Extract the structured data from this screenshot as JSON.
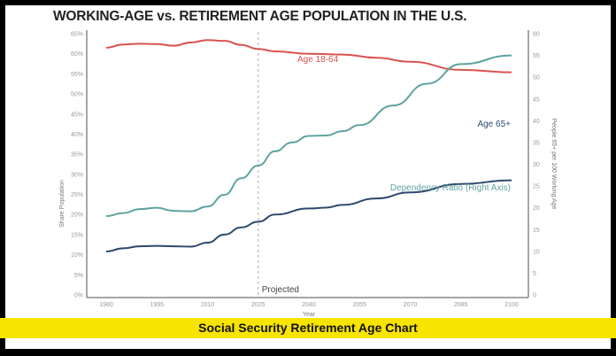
{
  "caption": "Social Security Retirement Age Chart",
  "chart_data": {
    "type": "line",
    "title": "WORKING-AGE vs. RETIREMENT AGE POPULATION IN THE U.S.",
    "xlabel": "Year",
    "ylabel": "Share Population",
    "ylabel_right": "People 65+ per 100 Working Age",
    "xlim": [
      1980,
      2100
    ],
    "ylim": [
      0,
      65
    ],
    "ylim_right": [
      0,
      60
    ],
    "x_ticks": [
      "1980",
      "1995",
      "2010",
      "2025",
      "2040",
      "2055",
      "2070",
      "2085",
      "2100"
    ],
    "y_ticks": [
      "0%",
      "5%",
      "10%",
      "15%",
      "20%",
      "25%",
      "30%",
      "35%",
      "40%",
      "45%",
      "50%",
      "55%",
      "60%",
      "65%"
    ],
    "y_ticks_right": [
      "0",
      "5",
      "10",
      "15",
      "20",
      "25",
      "30",
      "35",
      "40",
      "45",
      "50",
      "55",
      "60"
    ],
    "grid": false,
    "annotation": {
      "label": "Projected",
      "x": 2025
    },
    "colors": {
      "age_18_64": "#d9534f",
      "age_65": "#2c4a6e",
      "dependency": "#5fa3a0"
    },
    "series": [
      {
        "name": "Age 18-64",
        "axis": "left",
        "color": "#d9534f",
        "x": [
          1980,
          1985,
          1990,
          1995,
          2000,
          2005,
          2010,
          2015,
          2020,
          2025,
          2030,
          2040,
          2050,
          2060,
          2070,
          2085,
          2100
        ],
        "values": [
          61.5,
          62.3,
          62.5,
          62.4,
          62,
          62.8,
          63.4,
          63.2,
          62.2,
          61.2,
          60.6,
          60,
          59.8,
          59,
          58,
          56,
          55.4
        ]
      },
      {
        "name": "Age 65+",
        "axis": "left",
        "color": "#2c4a6e",
        "x": [
          1980,
          1985,
          1990,
          1995,
          2000,
          2005,
          2010,
          2015,
          2020,
          2025,
          2030,
          2040,
          2045,
          2050,
          2060,
          2070,
          2085,
          2100
        ],
        "values": [
          10.8,
          11.6,
          12.1,
          12.2,
          12.1,
          12,
          13,
          15,
          16.8,
          18.2,
          20,
          21.5,
          21.7,
          22.4,
          24,
          25.5,
          27.6,
          28.5
        ]
      },
      {
        "name": "Dependency Ratio (Right Axis)",
        "axis": "right",
        "color": "#5fa3a0",
        "x": [
          1980,
          1985,
          1990,
          1995,
          2000,
          2005,
          2010,
          2015,
          2020,
          2025,
          2030,
          2035,
          2040,
          2045,
          2050,
          2055,
          2065,
          2075,
          2085,
          2100
        ],
        "values": [
          18.1,
          18.8,
          19.7,
          20,
          19.3,
          19.2,
          20.3,
          23,
          26.8,
          29.7,
          33,
          35,
          36.5,
          36.6,
          37.6,
          39,
          43.5,
          48.5,
          53,
          55
        ]
      }
    ]
  }
}
